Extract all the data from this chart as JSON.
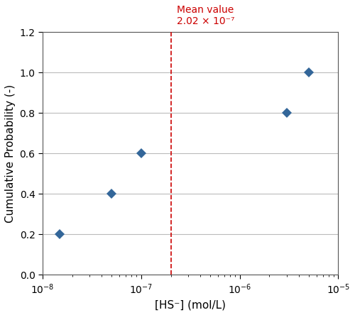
{
  "x_values": [
    1.5e-08,
    5e-08,
    1e-07,
    3e-06,
    5e-06
  ],
  "y_values": [
    0.2,
    0.4,
    0.6,
    0.8,
    1.0
  ],
  "mean_value": 2.02e-07,
  "mean_label_line1": "Mean value",
  "mean_label_line2": "2.02 × 10⁻⁷",
  "xlabel": "[HS⁻] (mol/L)",
  "ylabel": "Cumulative Probability (-)",
  "xlim": [
    1e-08,
    1e-05
  ],
  "ylim": [
    0.0,
    1.2
  ],
  "yticks": [
    0.0,
    0.2,
    0.4,
    0.6,
    0.8,
    1.0,
    1.2
  ],
  "marker_color": "#336699",
  "marker_style": "D",
  "marker_size": 7,
  "line_color": "#cc0000",
  "background_color": "#ffffff",
  "grid_color": "#bbbbbb"
}
